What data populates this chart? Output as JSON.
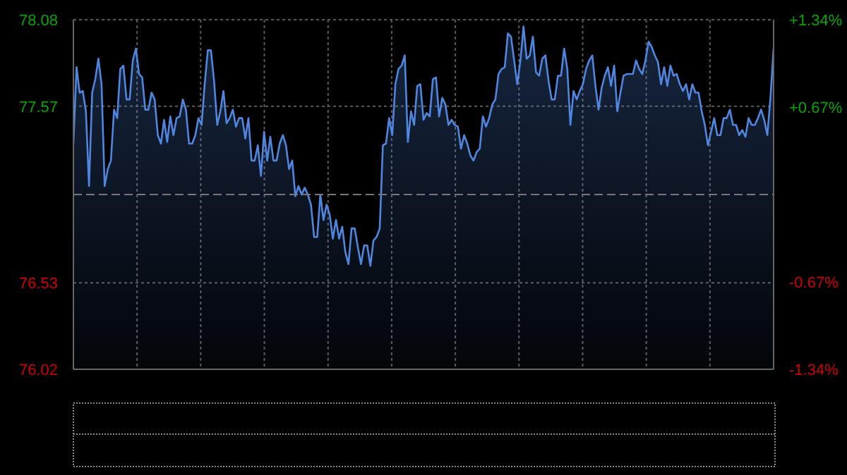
{
  "chart_data": {
    "type": "area",
    "categories": [
      null,
      null,
      null,
      null,
      null,
      null,
      null,
      null,
      null,
      null,
      null,
      null,
      null,
      null,
      null,
      null,
      null,
      null,
      null,
      null,
      null,
      null,
      null,
      null,
      null,
      null,
      null,
      null,
      null,
      null,
      null,
      null,
      null,
      null,
      null,
      null,
      null,
      null,
      null,
      null,
      null,
      null,
      null,
      null,
      null,
      null,
      null,
      null,
      null,
      null,
      null,
      null,
      null,
      null,
      null,
      null,
      null,
      null,
      null,
      null,
      null,
      null,
      null,
      null,
      null,
      null,
      null,
      null,
      null,
      null,
      null,
      null,
      null,
      null,
      null,
      null,
      null,
      null,
      null,
      null,
      null,
      null,
      null,
      null,
      null,
      null,
      null,
      null,
      null,
      null,
      null,
      null,
      null,
      null,
      null,
      null,
      null,
      null,
      null,
      null,
      null,
      null,
      null,
      null,
      null,
      null,
      null,
      null,
      null,
      null,
      null,
      null,
      null,
      null,
      null,
      null,
      null,
      null,
      null,
      null,
      null,
      null,
      null,
      null,
      null,
      null,
      null,
      null,
      null,
      null,
      null,
      null,
      null,
      null,
      null,
      null,
      null,
      null,
      null,
      null,
      null,
      null,
      null,
      null,
      null,
      null,
      null,
      null,
      null,
      null,
      null,
      null,
      null,
      null,
      null,
      null,
      null,
      null,
      null,
      null,
      null,
      null,
      null,
      null,
      null,
      null,
      null,
      null,
      null,
      null,
      null,
      null,
      null,
      null,
      null,
      null,
      null,
      null,
      null,
      null,
      null,
      null,
      null,
      null,
      null,
      null,
      null,
      null,
      null,
      null,
      null,
      null,
      null,
      null,
      null,
      null,
      null,
      null,
      null,
      null,
      null,
      null,
      null,
      null,
      null,
      null,
      null,
      null,
      null,
      null,
      null,
      null,
      null,
      null,
      null,
      null,
      null,
      null,
      null,
      null,
      null,
      null,
      null,
      null,
      null
    ],
    "ylim": [
      76.02,
      78.08
    ],
    "yticks": [
      78.08,
      77.57,
      76.53,
      76.02
    ],
    "y2lim": [
      -1.34,
      1.34
    ],
    "y2ticks": [
      {
        "value": 1.34,
        "label": "+1.34%"
      },
      {
        "value": 0.67,
        "label": "+0.67%"
      },
      {
        "value": -0.67,
        "label": "-0.67%"
      },
      {
        "value": -1.34,
        "label": "-1.34%"
      }
    ],
    "tick_labels": "y",
    "grid": true,
    "legend": false,
    "ref_lines": [
      {
        "axis": "y",
        "value": 77.05,
        "label": null,
        "color": "#777777",
        "line_style": "dashed"
      }
    ],
    "series": [
      {
        "color": "#4f86e0",
        "values": [
          77.35,
          77.8,
          77.65,
          77.66,
          77.54,
          77.1,
          77.65,
          77.73,
          77.85,
          77.7,
          77.1,
          77.2,
          77.25,
          77.55,
          77.5,
          77.79,
          77.81,
          77.61,
          77.61,
          77.84,
          77.91,
          77.76,
          77.74,
          77.55,
          77.55,
          77.65,
          77.61,
          77.4,
          77.35,
          77.49,
          77.36,
          77.51,
          77.4,
          77.5,
          77.51,
          77.61,
          77.55,
          77.35,
          77.35,
          77.4,
          77.5,
          77.46,
          77.7,
          77.9,
          77.9,
          77.72,
          77.46,
          77.54,
          77.66,
          77.47,
          77.5,
          77.55,
          77.45,
          77.5,
          77.5,
          77.38,
          77.5,
          77.25,
          77.25,
          77.34,
          77.16,
          77.42,
          77.25,
          77.39,
          77.25,
          77.25,
          77.35,
          77.4,
          77.34,
          77.2,
          77.25,
          77.04,
          77.1,
          77.05,
          77.09,
          77.05,
          76.99,
          76.8,
          76.8,
          77.05,
          76.9,
          76.99,
          76.93,
          76.79,
          76.9,
          76.79,
          76.86,
          76.71,
          76.64,
          76.85,
          76.85,
          76.74,
          76.64,
          76.75,
          76.75,
          76.63,
          76.78,
          76.8,
          76.85,
          77.34,
          77.35,
          77.5,
          77.4,
          77.7,
          77.79,
          77.81,
          77.87,
          77.36,
          77.54,
          77.46,
          77.69,
          77.7,
          77.49,
          77.53,
          77.51,
          77.73,
          77.74,
          77.51,
          77.62,
          77.58,
          77.46,
          77.49,
          77.46,
          77.45,
          77.32,
          77.4,
          77.35,
          77.28,
          77.25,
          77.3,
          77.32,
          77.51,
          77.45,
          77.5,
          77.58,
          77.61,
          77.76,
          77.79,
          77.8,
          78.0,
          77.98,
          77.84,
          77.7,
          77.84,
          78.04,
          77.85,
          77.87,
          77.98,
          77.77,
          77.75,
          77.85,
          77.87,
          77.72,
          77.61,
          77.61,
          77.75,
          77.75,
          77.91,
          77.79,
          77.46,
          77.66,
          77.61,
          77.66,
          77.7,
          77.79,
          77.84,
          77.87,
          77.69,
          77.55,
          77.68,
          77.75,
          77.8,
          77.69,
          77.81,
          77.54,
          77.65,
          77.75,
          77.76,
          77.76,
          77.76,
          77.84,
          77.79,
          77.76,
          77.84,
          77.95,
          77.92,
          77.87,
          77.83,
          77.7,
          77.8,
          77.69,
          77.81,
          77.75,
          77.76,
          77.7,
          77.66,
          77.7,
          77.61,
          77.7,
          77.65,
          77.65,
          77.54,
          77.46,
          77.34,
          77.42,
          77.5,
          77.4,
          77.4,
          77.5,
          77.5,
          77.55,
          77.46,
          77.46,
          77.4,
          77.43,
          77.39,
          77.5,
          77.46,
          77.46,
          77.5,
          77.55,
          77.49,
          77.4,
          77.62,
          77.91
        ]
      }
    ]
  }
}
